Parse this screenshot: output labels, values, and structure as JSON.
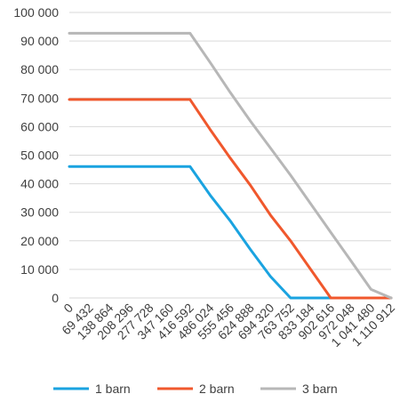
{
  "chart_data": {
    "type": "line",
    "title": "",
    "xlabel": "",
    "ylabel": "",
    "ylim": [
      0,
      100000
    ],
    "grid": true,
    "legend_position": "bottom",
    "y_ticks": [
      0,
      10000,
      20000,
      30000,
      40000,
      50000,
      60000,
      70000,
      80000,
      90000,
      100000
    ],
    "y_tick_labels": [
      "0",
      "10 000",
      "20 000",
      "30 000",
      "40 000",
      "50 000",
      "60 000",
      "70 000",
      "80 000",
      "90 000",
      "100 000"
    ],
    "x_tick_labels": [
      "0",
      "69 432",
      "138 864",
      "208 296",
      "277 728",
      "347 160",
      "416 592",
      "486 024",
      "555 456",
      "624 888",
      "694 320",
      "763 752",
      "833 184",
      "902 616",
      "972 048",
      "1 041 480",
      "1 110 912"
    ],
    "x": [
      0,
      69432,
      138864,
      208296,
      277728,
      347160,
      416592,
      486024,
      555456,
      624888,
      694320,
      763752,
      833184,
      902616,
      972048,
      1041480,
      1110912
    ],
    "series": [
      {
        "name": "1 barn",
        "color": "#1aa3e0",
        "values": [
          46000,
          46000,
          46000,
          46000,
          46000,
          46000,
          46000,
          36000,
          27000,
          17000,
          7500,
          0,
          0,
          0,
          0,
          0,
          0
        ]
      },
      {
        "name": "2 barn",
        "color": "#f0582d",
        "values": [
          69500,
          69500,
          69500,
          69500,
          69500,
          69500,
          69500,
          59000,
          49000,
          39500,
          29000,
          20000,
          10000,
          0,
          0,
          0,
          0
        ]
      },
      {
        "name": "3 barn",
        "color": "#b7b7b7",
        "values": [
          92700,
          92700,
          92700,
          92700,
          92700,
          92700,
          92700,
          82500,
          72000,
          62000,
          52500,
          43000,
          33000,
          23000,
          13000,
          3000,
          0
        ]
      }
    ]
  }
}
